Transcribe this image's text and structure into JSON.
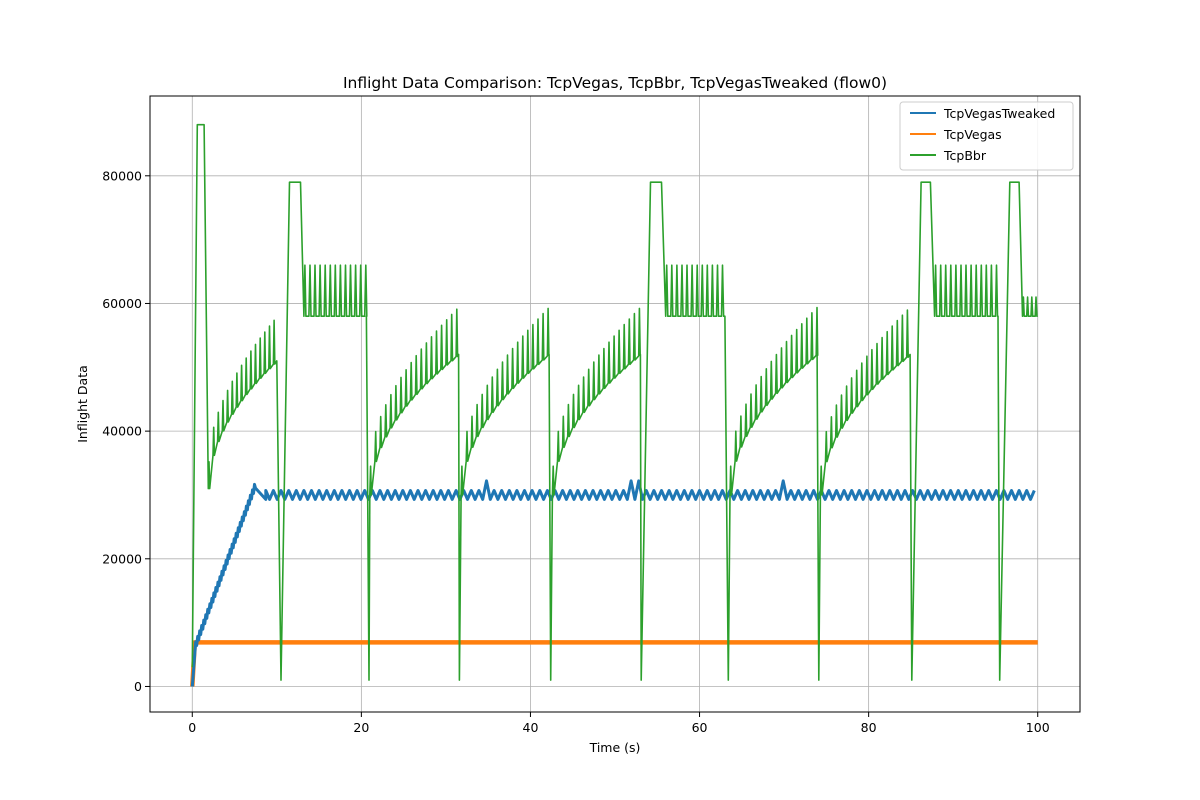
{
  "chart_data": {
    "type": "line",
    "title": "Inflight Data Comparison: TcpVegas, TcpBbr, TcpVegasTweaked (flow0)",
    "xlabel": "Time (s)",
    "ylabel": "Inflight Data",
    "xlim": [
      -5,
      105
    ],
    "ylim": [
      -4000,
      92500
    ],
    "xticks": [
      0,
      20,
      40,
      60,
      80,
      100
    ],
    "yticks": [
      0,
      20000,
      40000,
      60000,
      80000
    ],
    "grid": true,
    "legend_position": "top-right",
    "series": [
      {
        "name": "TcpVegasTweaked",
        "color": "#1f77b4",
        "pattern": "ramp-then-oscillate",
        "points": [
          [
            0,
            0
          ],
          [
            0.4,
            6500
          ],
          [
            7.6,
            32000
          ],
          [
            8.7,
            29300
          ],
          [
            100,
            30500
          ]
        ],
        "oscillation": {
          "low": 29300,
          "high": 30700,
          "period": 0.9
        },
        "bumps": [
          [
            7.8,
            32200
          ],
          [
            34.8,
            32200
          ],
          [
            52.3,
            32200
          ],
          [
            69.8,
            32200
          ]
        ]
      },
      {
        "name": "TcpVegas",
        "color": "#ff7f0e",
        "pattern": "constant",
        "points": [
          [
            0,
            0
          ],
          [
            0.3,
            6900
          ],
          [
            100,
            6900
          ]
        ]
      },
      {
        "name": "TcpBbr",
        "color": "#2ca02c",
        "pattern": "bbr-cycles",
        "points": [
          [
            0,
            3000
          ],
          [
            0.6,
            88000
          ],
          [
            1.4,
            88000
          ],
          [
            1.9,
            31000
          ],
          [
            10,
            51000
          ],
          [
            10.5,
            1000
          ],
          [
            11.5,
            79000
          ],
          [
            12.8,
            79000
          ],
          [
            13.2,
            58000
          ],
          [
            20.6,
            58000
          ],
          [
            20.9,
            1000
          ],
          [
            31.5,
            52000
          ],
          [
            31.6,
            1000
          ],
          [
            42.2,
            52000
          ],
          [
            42.4,
            1000
          ],
          [
            53.0,
            52000
          ],
          [
            53.1,
            1000
          ],
          [
            54.2,
            79000
          ],
          [
            55.5,
            79000
          ],
          [
            56.0,
            58000
          ],
          [
            63.0,
            58000
          ],
          [
            63.4,
            1000
          ],
          [
            73.9,
            52000
          ],
          [
            74.1,
            1000
          ],
          [
            84.9,
            52000
          ],
          [
            85.1,
            1000
          ],
          [
            86.2,
            79000
          ],
          [
            87.3,
            79000
          ],
          [
            87.8,
            58000
          ],
          [
            95.3,
            58000
          ],
          [
            95.5,
            1000
          ],
          [
            96.7,
            79000
          ],
          [
            97.8,
            79000
          ],
          [
            98.2,
            58000
          ],
          [
            100,
            58000
          ]
        ]
      }
    ]
  }
}
